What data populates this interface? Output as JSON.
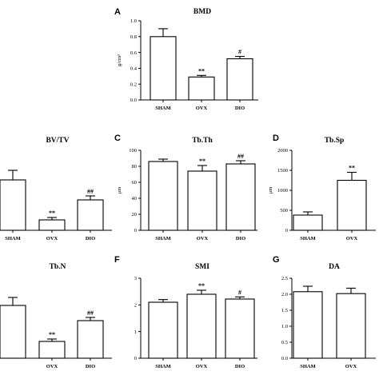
{
  "chart_data": [
    {
      "id": "A",
      "letter": "A",
      "title": "BMD",
      "ylabel": "g/cm³",
      "type": "bar",
      "ylim": [
        0,
        1.0
      ],
      "yticks": [
        "0.0",
        "0.2",
        "0.4",
        "0.6",
        "0.8",
        "1.0"
      ],
      "ytick_values": [
        0,
        0.2,
        0.4,
        0.6,
        0.8,
        1.0
      ],
      "categories": [
        "SHAM",
        "OVX",
        "DIO"
      ],
      "values": [
        0.8,
        0.29,
        0.52
      ],
      "errors": [
        0.1,
        0.02,
        0.03
      ],
      "annotations": [
        "",
        "**",
        "#"
      ]
    },
    {
      "id": "B",
      "letter": "",
      "title": "BV/TV",
      "ylabel": "",
      "type": "bar",
      "ylim": [
        0,
        1.0
      ],
      "yticks": [],
      "ytick_values": [],
      "categories": [
        "SHAM",
        "OVX",
        "DIO"
      ],
      "values": [
        0.63,
        0.13,
        0.38
      ],
      "errors": [
        0.12,
        0.03,
        0.05
      ],
      "annotations": [
        "",
        "**",
        "##"
      ]
    },
    {
      "id": "C",
      "letter": "C",
      "title": "Tb.Th",
      "ylabel": "μm",
      "type": "bar",
      "ylim": [
        0,
        100
      ],
      "yticks": [
        "0",
        "20",
        "40",
        "60",
        "80",
        "100"
      ],
      "ytick_values": [
        0,
        20,
        40,
        60,
        80,
        100
      ],
      "categories": [
        "SHAM",
        "OVX",
        "DIO"
      ],
      "values": [
        86,
        74,
        83
      ],
      "errors": [
        3,
        7,
        4
      ],
      "annotations": [
        "",
        "**",
        "##"
      ]
    },
    {
      "id": "D",
      "letter": "D",
      "title": "Tb.Sp",
      "ylabel": "μm",
      "type": "bar",
      "ylim": [
        0,
        2000
      ],
      "yticks": [
        "0",
        "500",
        "1000",
        "1500",
        "2000"
      ],
      "ytick_values": [
        0,
        500,
        1000,
        1500,
        2000
      ],
      "categories": [
        "SHAM",
        "OVX"
      ],
      "values": [
        380,
        1250
      ],
      "errors": [
        80,
        200
      ],
      "annotations": [
        "",
        "**"
      ]
    },
    {
      "id": "E",
      "letter": "",
      "title": "Tb.N",
      "ylabel": "",
      "type": "bar",
      "ylim": [
        0,
        1.0
      ],
      "yticks": [],
      "ytick_values": [],
      "categories": [
        "",
        "OVX",
        "DIO"
      ],
      "values": [
        0.66,
        0.21,
        0.47
      ],
      "errors": [
        0.1,
        0.03,
        0.04
      ],
      "annotations": [
        "",
        "**",
        "##"
      ]
    },
    {
      "id": "F",
      "letter": "F",
      "title": "SMI",
      "ylabel": "",
      "type": "bar",
      "ylim": [
        0,
        3
      ],
      "yticks": [
        "0",
        "1",
        "2",
        "3"
      ],
      "ytick_values": [
        0,
        1,
        2,
        3
      ],
      "categories": [
        "SHAM",
        "OVX",
        "DIO"
      ],
      "values": [
        2.1,
        2.4,
        2.22
      ],
      "errors": [
        0.1,
        0.15,
        0.08
      ],
      "annotations": [
        "",
        "**",
        "#"
      ]
    },
    {
      "id": "G",
      "letter": "G",
      "title": "DA",
      "ylabel": "",
      "type": "bar",
      "ylim": [
        0,
        2.5
      ],
      "yticks": [
        "0.0",
        "0.5",
        "1.0",
        "1.5",
        "2.0",
        "2.5"
      ],
      "ytick_values": [
        0,
        0.5,
        1.0,
        1.5,
        2.0,
        2.5
      ],
      "categories": [
        "SHAM",
        "OVX"
      ],
      "values": [
        2.08,
        2.02
      ],
      "errors": [
        0.17,
        0.17
      ],
      "annotations": [
        "",
        ""
      ]
    }
  ]
}
